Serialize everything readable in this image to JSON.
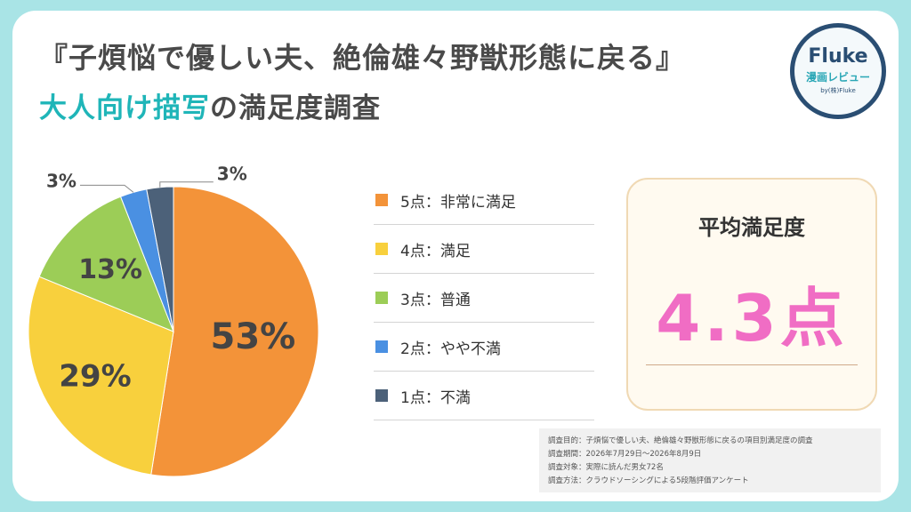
{
  "title": {
    "line1": "『子煩悩で優しい夫、絶倫雄々野獣形態に戻る』",
    "line2_accent": "大人向け描写",
    "line2_rest": "の満足度調査"
  },
  "logo": {
    "name": "Fluke",
    "sub": "漫画レビュー",
    "by": "by(株)Fluke"
  },
  "chart_data": {
    "type": "pie",
    "categories": [
      "5点：非常に満足",
      "4点：満足",
      "3点：普通",
      "2点：やや不満",
      "1点：不満"
    ],
    "values": [
      53,
      29,
      13,
      3,
      3
    ],
    "labels": [
      "53%",
      "29%",
      "13%",
      "3%",
      "3%"
    ],
    "colors": [
      "#f39339",
      "#f8d03d",
      "#9ccd57",
      "#4a90e2",
      "#4c6179"
    ],
    "legend_position": "right"
  },
  "average": {
    "title": "平均満足度",
    "value": "4.3点"
  },
  "survey": {
    "lines": [
      "調査目的：子煩悩で優しい夫、絶倫雄々野獣形態に戻るの項目別満足度の調査",
      "調査期間：2026年7月29日～2026年8月9日",
      "調査対象：実際に読んだ男女72名",
      "調査方法：クラウドソーシングによる5段階評価アンケート"
    ]
  }
}
